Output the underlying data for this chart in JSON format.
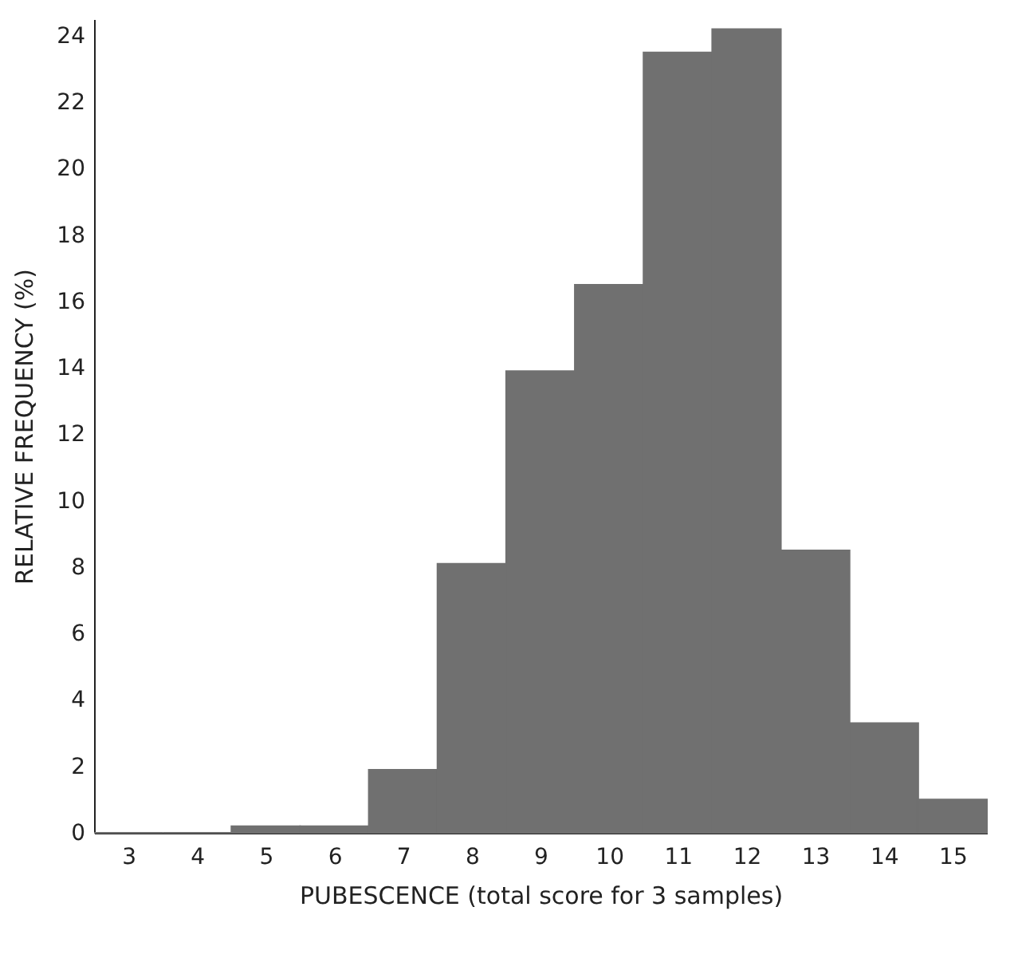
{
  "chart_data": {
    "type": "histogram",
    "xlabel": "PUBESCENCE (total score for 3 samples)",
    "ylabel": "RELATIVE  FREQUENCY  (%)",
    "bins": [
      2.5,
      3.5,
      4.5,
      5.5,
      6.5,
      7.5,
      8.5,
      9.5,
      10.5,
      11.5,
      12.5,
      13.5,
      14.5,
      15.5
    ],
    "values": [
      0,
      0,
      0.2,
      0.2,
      1.9,
      8.1,
      13.9,
      16.5,
      23.5,
      24.2,
      8.5,
      3.3,
      1.0
    ],
    "color": "#707070",
    "xlim": [
      2.5,
      15.5
    ],
    "xticks": [
      3,
      4,
      5,
      6,
      7,
      8,
      9,
      10,
      11,
      12,
      13,
      14,
      15
    ],
    "ylim": [
      0,
      24.5
    ],
    "yticks": [
      0,
      2,
      4,
      6,
      8,
      10,
      12,
      14,
      16,
      18,
      20,
      22,
      24
    ],
    "grid": false
  }
}
